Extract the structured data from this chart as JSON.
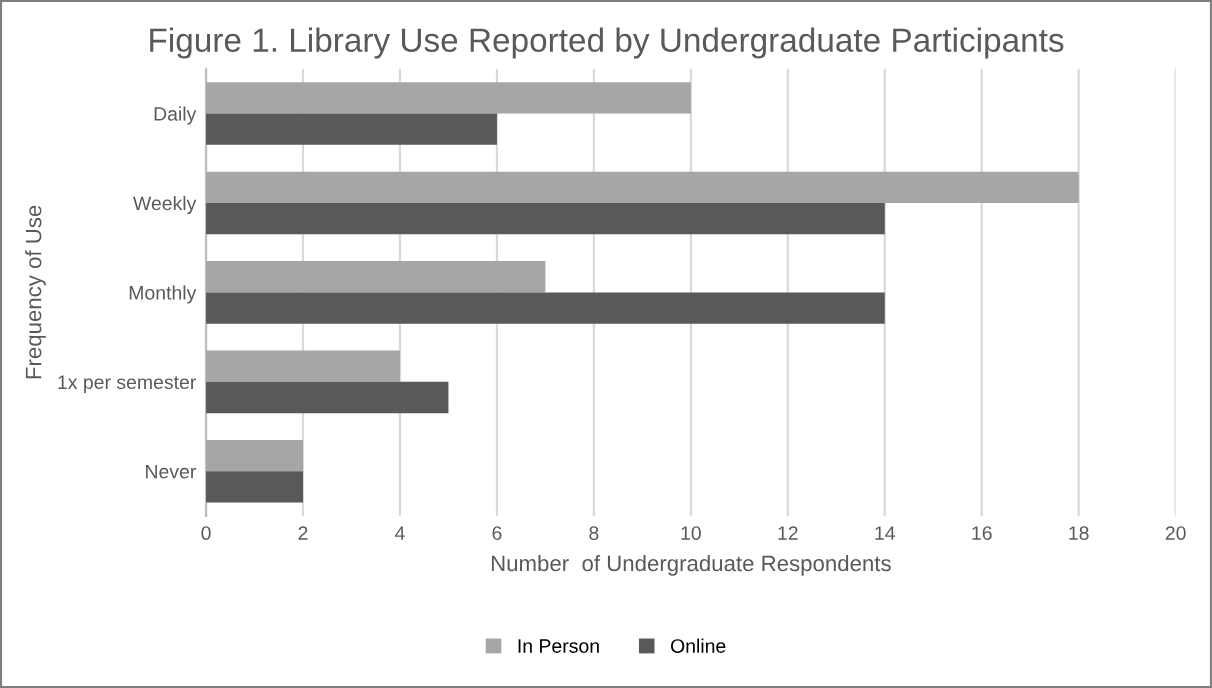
{
  "chart_data": {
    "type": "bar",
    "orientation": "horizontal",
    "title": "Figure 1. Library Use Reported by Undergraduate Participants",
    "xlabel": "Number  of Undergraduate Respondents",
    "ylabel": "Frequency of Use",
    "categories": [
      "Daily",
      "Weekly",
      "Monthly",
      "1x per semester",
      "Never"
    ],
    "series": [
      {
        "name": "In Person",
        "color": "#a6a6a6",
        "values": [
          10,
          18,
          7,
          4,
          2
        ]
      },
      {
        "name": "Online",
        "color": "#595959",
        "values": [
          6,
          14,
          14,
          5,
          2
        ]
      }
    ],
    "xlim": [
      0,
      20
    ],
    "xticks": [
      0,
      2,
      4,
      6,
      8,
      10,
      12,
      14,
      16,
      18,
      20
    ],
    "grid": "x",
    "legend": "bottom"
  }
}
